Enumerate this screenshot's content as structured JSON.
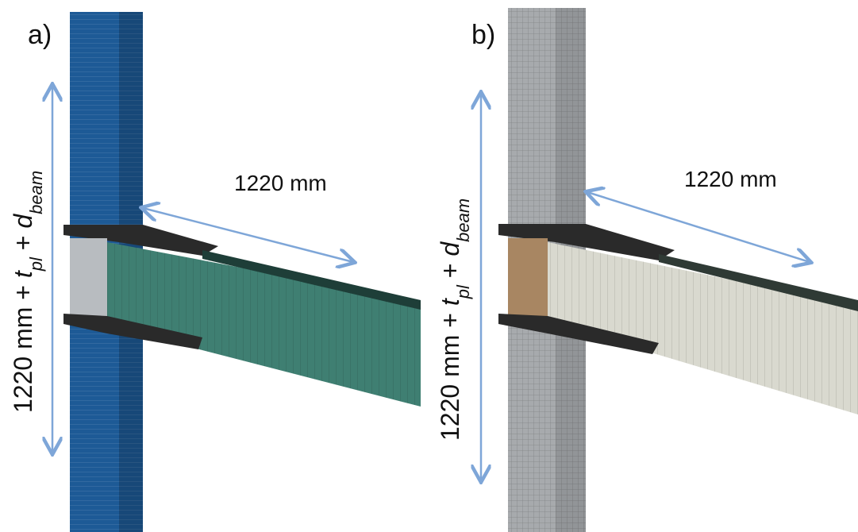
{
  "panels": [
    {
      "label": "a)",
      "beam_length_label": "1220 mm",
      "column_height_label": [
        "1220 mm + ",
        "t",
        "pl",
        " + ",
        "d",
        "beam"
      ]
    },
    {
      "label": "b)",
      "beam_length_label": "1220 mm",
      "column_height_label": [
        "1220 mm + ",
        "t",
        "pl",
        " + ",
        "d",
        "beam"
      ]
    }
  ]
}
